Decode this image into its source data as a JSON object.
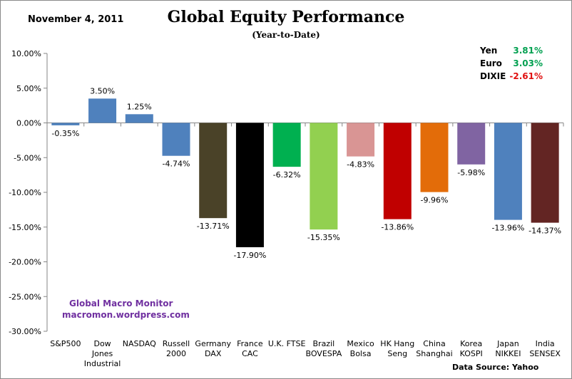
{
  "header": {
    "date": "November 4,  2011",
    "title": "Global Equity Performance",
    "subtitle": "(Year-to-Date)"
  },
  "currencies": [
    {
      "name": "Yen",
      "value": "3.81%",
      "color": "#00a050"
    },
    {
      "name": "Euro",
      "value": "3.03%",
      "color": "#00a050"
    },
    {
      "name": "DIXIE",
      "value": "-2.61%",
      "color": "#e01010"
    }
  ],
  "watermark": {
    "line1": "Global Macro Monitor",
    "line2": "macromon.wordpress.com"
  },
  "source": "Data Source:  Yahoo",
  "chart_data": {
    "type": "bar",
    "title": "Global Equity Performance",
    "subtitle": "(Year-to-Date)",
    "ylim": [
      -30,
      10
    ],
    "yticks": [
      10,
      5,
      0,
      -5,
      -10,
      -15,
      -20,
      -25,
      -30
    ],
    "ytick_labels": [
      "10.00%",
      "5.00%",
      "0.00%",
      "-5.00%",
      "-10.00%",
      "-15.00%",
      "-20.00%",
      "-25.00%",
      "-30.00%"
    ],
    "categories": [
      [
        "S&P500"
      ],
      [
        "Dow",
        "Jones",
        "Industrial"
      ],
      [
        "NASDAQ"
      ],
      [
        "Russell",
        "2000"
      ],
      [
        "Germany",
        "DAX"
      ],
      [
        "France",
        "CAC"
      ],
      [
        "U.K. FTSE"
      ],
      [
        "Brazil",
        "BOVESPA"
      ],
      [
        "Mexico",
        "Bolsa"
      ],
      [
        "HK Hang",
        "Seng"
      ],
      [
        "China",
        "Shanghai"
      ],
      [
        "Korea",
        "KOSPI"
      ],
      [
        "Japan",
        "NIKKEI"
      ],
      [
        "India",
        "SENSEX"
      ]
    ],
    "values": [
      -0.35,
      3.5,
      1.25,
      -4.74,
      -13.71,
      -17.9,
      -6.32,
      -15.35,
      -4.83,
      -13.86,
      -9.96,
      -5.98,
      -13.96,
      -14.37
    ],
    "data_labels": [
      "-0.35%",
      "3.50%",
      "1.25%",
      "-4.74%",
      "-13.71%",
      "-17.90%",
      "-6.32%",
      "-15.35%",
      "-4.83%",
      "-13.86%",
      "-9.96%",
      "-5.98%",
      "-13.96%",
      "-14.37%"
    ],
    "colors": [
      "#4f81bd",
      "#4f81bd",
      "#4f81bd",
      "#4f81bd",
      "#4a4228",
      "#000000",
      "#00b050",
      "#92d050",
      "#d99594",
      "#c00000",
      "#e36c09",
      "#8064a2",
      "#4f81bd",
      "#632523"
    ],
    "grid": false,
    "legend": "none"
  }
}
